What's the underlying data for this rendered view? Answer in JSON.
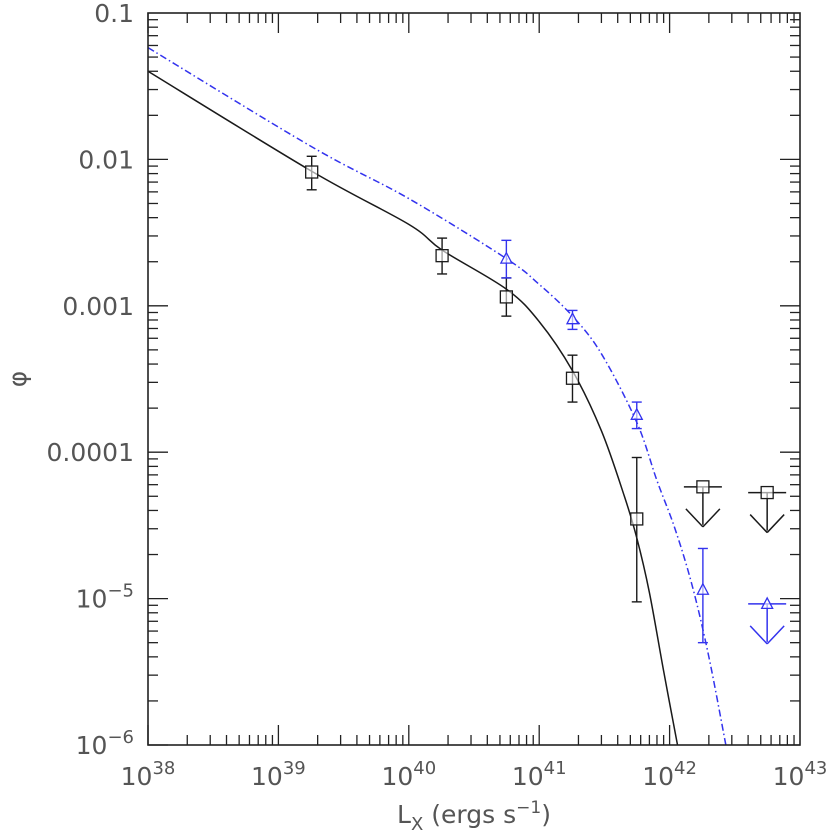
{
  "chart_data": {
    "type": "scatter",
    "title": "",
    "xlabel": {
      "base": "L",
      "sub": "X",
      "units_pre": " (ergs s",
      "units_sup": "−1",
      "units_post": ")"
    },
    "ylabel": "φ",
    "x_scale": "log",
    "y_scale": "log",
    "xlim": [
      1e+38,
      1e+43
    ],
    "ylim": [
      1e-06,
      0.1
    ],
    "x_ticks": [
      {
        "value": 1e+38,
        "base": "10",
        "exp": "38"
      },
      {
        "value": 1e+39,
        "base": "10",
        "exp": "39"
      },
      {
        "value": 1e+40,
        "base": "10",
        "exp": "40"
      },
      {
        "value": 1e+41,
        "base": "10",
        "exp": "41"
      },
      {
        "value": 1e+42,
        "base": "10",
        "exp": "42"
      },
      {
        "value": 1e+43,
        "base": "10",
        "exp": "43"
      }
    ],
    "y_ticks": [
      {
        "value": 0.1,
        "text": "0.1"
      },
      {
        "value": 0.01,
        "text": "0.01"
      },
      {
        "value": 0.001,
        "text": "0.001"
      },
      {
        "value": 0.0001,
        "text": "0.0001"
      },
      {
        "value": 1e-05,
        "base": "10",
        "exp": "−5"
      },
      {
        "value": 1e-06,
        "base": "10",
        "exp": "−6"
      }
    ],
    "series": [
      {
        "color": "#1a1a1a",
        "marker": "square",
        "points": [
          {
            "x": 1.8e+39,
            "y": 0.0082,
            "y_low": 0.0062,
            "y_high": 0.0105
          },
          {
            "x": 1.8e+40,
            "y": 0.0022,
            "y_low": 0.00165,
            "y_high": 0.0029
          },
          {
            "x": 5.6e+40,
            "y": 0.00115,
            "y_low": 0.00085,
            "y_high": 0.00155
          },
          {
            "x": 1.8e+41,
            "y": 0.00032,
            "y_low": 0.00022,
            "y_high": 0.00046
          },
          {
            "x": 5.6e+41,
            "y": 3.5e-05,
            "y_low": 9.5e-06,
            "y_high": 9.2e-05
          }
        ],
        "upper_limits": [
          {
            "x": 1.8e+42,
            "y": 5.8e-05
          },
          {
            "x": 5.6e+42,
            "y": 5.3e-05
          }
        ],
        "fit_curve": [
          [
            1e+38,
            0.04
          ],
          [
            1.8e+39,
            0.0083
          ],
          [
            1e+40,
            0.0036
          ],
          [
            1.8e+40,
            0.0024
          ],
          [
            5.6e+40,
            0.0013
          ],
          [
            1e+41,
            0.00078
          ],
          [
            1.8e+41,
            0.00036
          ],
          [
            3e+41,
            0.00014
          ],
          [
            4.5e+41,
            5e-05
          ],
          [
            5.6e+41,
            2.6e-05
          ],
          [
            7e+41,
            1.1e-05
          ],
          [
            9e+41,
            3.2e-06
          ],
          [
            1.15e+42,
            1e-06
          ]
        ],
        "fit_style": "solid"
      },
      {
        "color": "#3333ee",
        "marker": "triangle",
        "points": [
          {
            "x": 5.6e+40,
            "y": 0.0021,
            "y_low": 0.00155,
            "y_high": 0.0028
          },
          {
            "x": 1.8e+41,
            "y": 0.00081,
            "y_low": 0.00069,
            "y_high": 0.00093
          },
          {
            "x": 5.6e+41,
            "y": 0.00018,
            "y_low": 0.000145,
            "y_high": 0.00022
          },
          {
            "x": 1.8e+42,
            "y": 1.15e-05,
            "y_low": 5e-06,
            "y_high": 2.2e-05
          }
        ],
        "upper_limits": [
          {
            "x": 5.6e+42,
            "y": 9.2e-06
          }
        ],
        "fit_curve": [
          [
            1e+38,
            0.058
          ],
          [
            1.8e+39,
            0.0122
          ],
          [
            1e+40,
            0.0054
          ],
          [
            5.6e+40,
            0.0021
          ],
          [
            1e+41,
            0.0014
          ],
          [
            1.8e+41,
            0.00085
          ],
          [
            3e+41,
            0.00047
          ],
          [
            5.6e+41,
            0.00016
          ],
          [
            8e+41,
            6.4e-05
          ],
          [
            1.1e+42,
            3e-05
          ],
          [
            1.5e+42,
            1.2e-05
          ],
          [
            2e+42,
            4e-06
          ],
          [
            2.7e+42,
            1e-06
          ]
        ],
        "fit_style": "dash-dot"
      }
    ]
  }
}
